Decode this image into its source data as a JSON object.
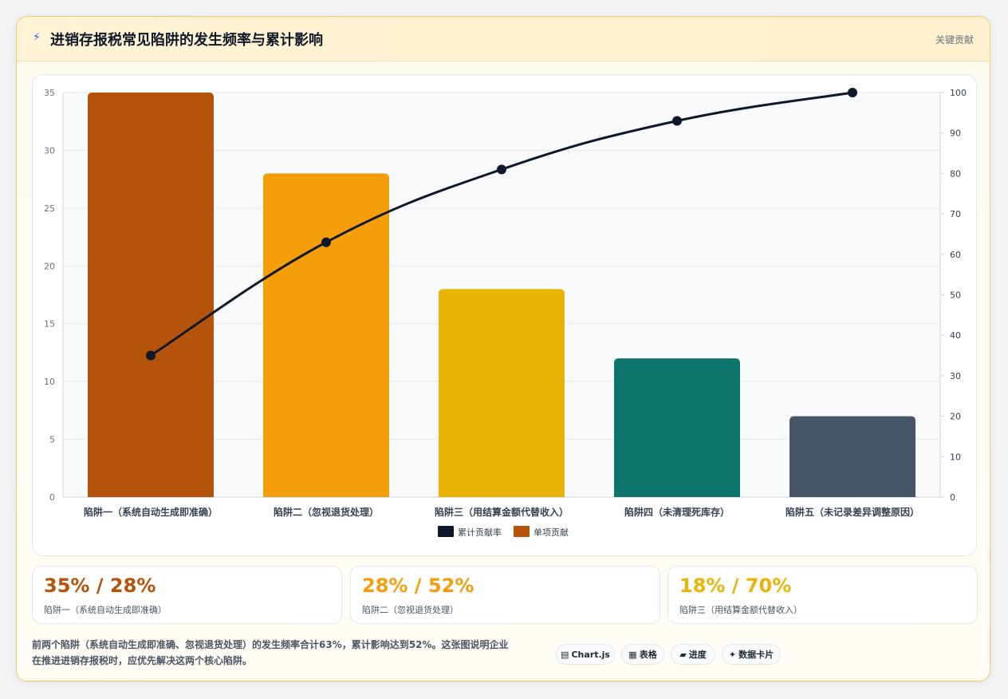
{
  "header": {
    "bolt": "⚡",
    "title": "进销存报税常见陷阱的发生频率与累计影响",
    "tag": "关键贡献"
  },
  "chart_data": {
    "type": "bar",
    "categories": [
      "陷阱一（系统自动生成即准确）",
      "陷阱二（忽视退货处理）",
      "陷阱三（用结算金额代替收入）",
      "陷阱四（未清理死库存）",
      "陷阱五（未记录差异调整原因）"
    ],
    "series": [
      {
        "name": "单项贡献",
        "type": "bar",
        "values": [
          35,
          28,
          18,
          12,
          7
        ],
        "colors": [
          "#b45309",
          "#f59e0b",
          "#eab308",
          "#0f766e",
          "#475569"
        ],
        "axis": "left"
      },
      {
        "name": "累计贡献率",
        "type": "line",
        "values": [
          35,
          63,
          81,
          93,
          100
        ],
        "color": "#0f172a",
        "axis": "right"
      }
    ],
    "y_left": {
      "min": 0,
      "max": 35,
      "ticks": [
        0,
        5,
        10,
        15,
        20,
        25,
        30,
        35
      ]
    },
    "y_right": {
      "min": 0,
      "max": 100,
      "ticks": [
        0,
        10,
        20,
        30,
        40,
        50,
        60,
        70,
        80,
        90,
        100
      ]
    },
    "legend": {
      "placement": "bottom",
      "items": [
        "累计贡献率",
        "单项贡献"
      ]
    },
    "grid": true
  },
  "kpis": [
    {
      "value": "35% / 28%",
      "label": "陷阱一（系统自动生成即准确）",
      "color": "#b45309"
    },
    {
      "value": "28% / 52%",
      "label": "陷阱二（忽视退货处理）",
      "color": "#f59e0b"
    },
    {
      "value": "18% / 70%",
      "label": "陷阱三（用结算金额代替收入）",
      "color": "#eab308"
    }
  ],
  "note": {
    "line1": "前两个陷阱（系统自动生成即准确、忽视退货处理）的发生频率合计63%，累计影响达到52%。这张图说明企业",
    "line2": "在推进进销存报税时，应优先解决这两个核心陷阱。"
  },
  "pills": [
    {
      "icon": "▤",
      "label": "Chart.js"
    },
    {
      "icon": "▦",
      "label": "表格"
    },
    {
      "icon": "▰",
      "label": "进度"
    },
    {
      "icon": "✦",
      "label": "数据卡片"
    }
  ]
}
